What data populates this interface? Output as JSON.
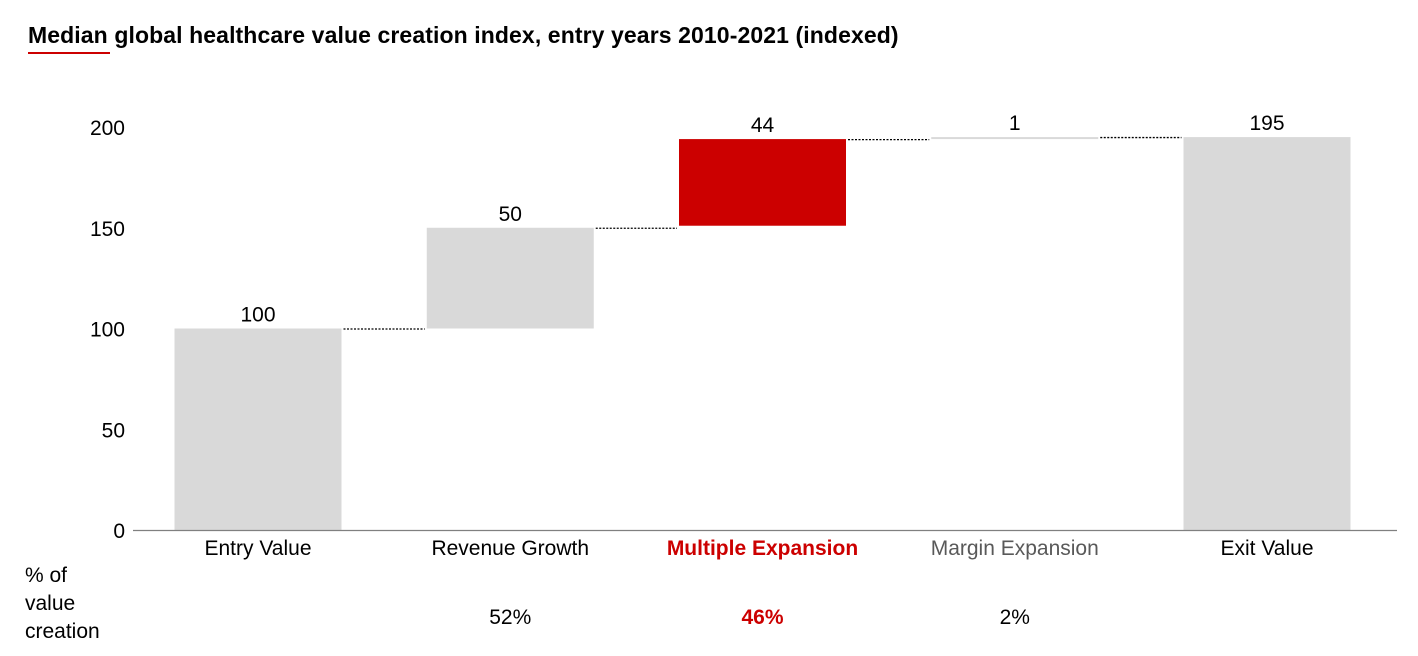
{
  "title": "Median global healthcare value creation index, entry years 2010-2021 (indexed)",
  "colors": {
    "accent": "#cc0000",
    "bar_gray": "#d9d9d9",
    "axis": "#808080",
    "label_gray": "#595959"
  },
  "footer": {
    "caption": "% of\nvalue\ncreation"
  },
  "chart_data": {
    "type": "bar",
    "subtype": "waterfall",
    "title": "Median global healthcare value creation index, entry years 2010-2021 (indexed)",
    "xlabel": "",
    "ylabel": "",
    "ylim": [
      0,
      200
    ],
    "yticks": [
      0,
      50,
      100,
      150,
      200
    ],
    "grid": false,
    "legend": "none",
    "categories": [
      "Entry Value",
      "Revenue Growth",
      "Multiple Expansion",
      "Margin Expansion",
      "Exit Value"
    ],
    "bars": [
      {
        "label": "Entry Value",
        "kind": "total",
        "start": 0,
        "end": 100,
        "value": 100,
        "value_label": "100",
        "color": "#d9d9d9",
        "label_color": "#000000",
        "label_bold": false,
        "pct": ""
      },
      {
        "label": "Revenue Growth",
        "kind": "delta",
        "start": 100,
        "end": 150,
        "value": 50,
        "value_label": "50",
        "color": "#d9d9d9",
        "label_color": "#000000",
        "label_bold": false,
        "pct": "52%"
      },
      {
        "label": "Multiple Expansion",
        "kind": "delta",
        "start": 151,
        "end": 194,
        "value": 44,
        "value_label": "44",
        "color": "#cc0000",
        "label_color": "#cc0000",
        "label_bold": true,
        "pct": "46%"
      },
      {
        "label": "Margin Expansion",
        "kind": "delta",
        "start": 194,
        "end": 195,
        "value": 1,
        "value_label": "1",
        "color": "#d9d9d9",
        "label_color": "#595959",
        "label_bold": false,
        "pct": "2%"
      },
      {
        "label": "Exit Value",
        "kind": "total",
        "start": 0,
        "end": 195,
        "value": 195,
        "value_label": "195",
        "color": "#d9d9d9",
        "label_color": "#000000",
        "label_bold": false,
        "pct": ""
      }
    ]
  }
}
